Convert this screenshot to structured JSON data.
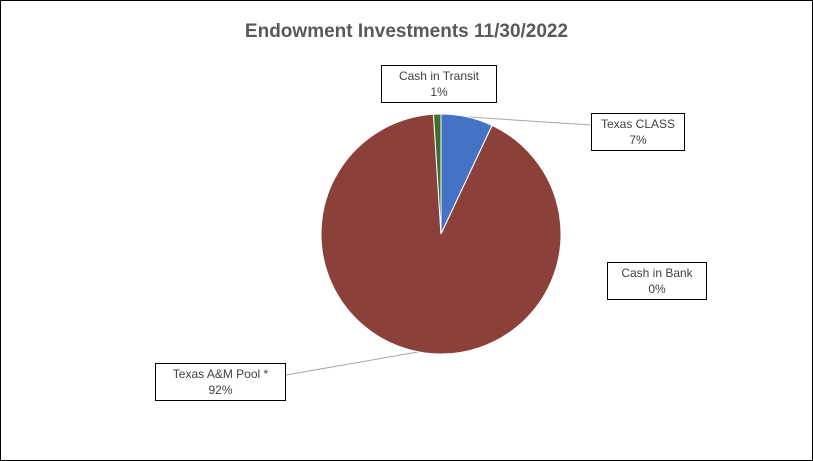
{
  "chart_data": {
    "type": "pie",
    "title": "Endowment Investments 11/30/2022",
    "slices": [
      {
        "label": "Texas CLASS",
        "value": 7,
        "display": "7%",
        "color": "#4472C4"
      },
      {
        "label": "Cash in Bank",
        "value": 0,
        "display": "0%",
        "color": "#ED7D31"
      },
      {
        "label": "Texas A&M Pool *",
        "value": 92,
        "display": "92%",
        "color": "#8B4139"
      },
      {
        "label": "Cash in Transit",
        "value": 1,
        "display": "1%",
        "color": "#3F6F2A"
      }
    ]
  }
}
